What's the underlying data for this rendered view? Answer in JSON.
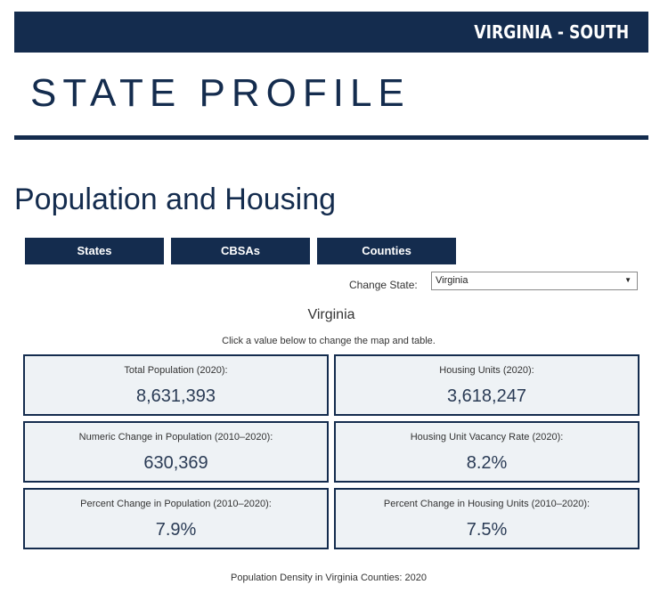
{
  "header": {
    "banner": "VIRGINIA - SOUTH",
    "page_title": "STATE PROFILE"
  },
  "section": {
    "title": "Population and Housing"
  },
  "tabs": [
    {
      "label": "States"
    },
    {
      "label": "CBSAs"
    },
    {
      "label": "Counties"
    }
  ],
  "state_selector": {
    "label": "Change State:",
    "value": "Virginia"
  },
  "summary": {
    "state_name": "Virginia",
    "hint": "Click a value below to change the map and table."
  },
  "cards": [
    {
      "label": "Total Population (2020):",
      "value": "8,631,393"
    },
    {
      "label": "Housing Units (2020):",
      "value": "3,618,247"
    },
    {
      "label": "Numeric Change in Population (2010–2020):",
      "value": "630,369"
    },
    {
      "label": "Housing Unit Vacancy Rate (2020):",
      "value": "8.2%"
    },
    {
      "label": "Percent Change in Population (2010–2020):",
      "value": "7.9%"
    },
    {
      "label": "Percent Change in Housing Units (2010–2020):",
      "value": "7.5%"
    }
  ],
  "map": {
    "caption": "Population Density in Virginia Counties: 2020"
  },
  "colors": {
    "navy": "#142c4e",
    "card_background": "#eef2f5"
  }
}
